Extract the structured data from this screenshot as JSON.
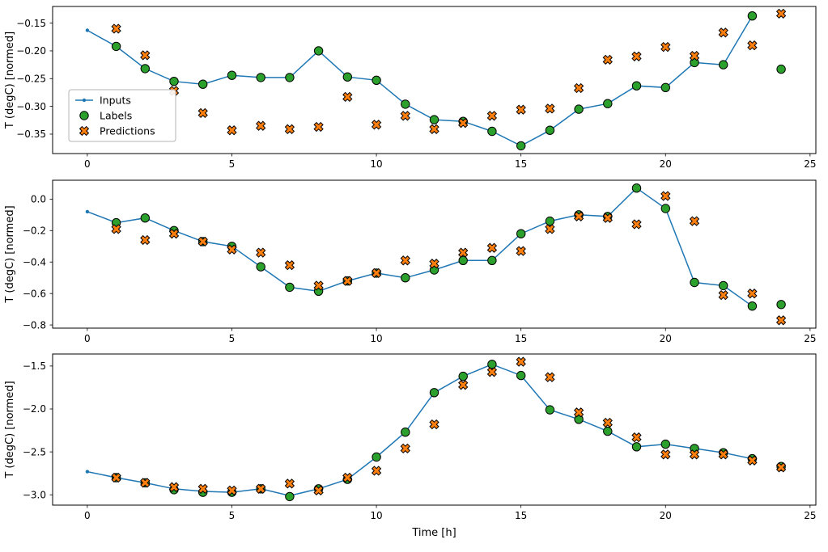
{
  "figure": {
    "background": "#ffffff",
    "xlabel": "Time [h]",
    "ylabel": "T (degC) [normed]"
  },
  "legend": {
    "entries": [
      "Inputs",
      "Labels",
      "Predictions"
    ]
  },
  "colors": {
    "inputs": "#1f77b4",
    "labels": "#2ca02c",
    "predictions": "#ff7f0e",
    "marker_edge": "#000000",
    "axes": "#000000",
    "legend_border": "#b4b4b4"
  },
  "chart_data": [
    {
      "type": "line",
      "title": "",
      "xlabel": "",
      "ylabel": "T (degC) [normed]",
      "xlim": [
        -1.2,
        25.2
      ],
      "ylim": [
        -0.385,
        -0.12
      ],
      "xticks": [
        0,
        5,
        10,
        15,
        20,
        25
      ],
      "xtick_labels": [
        "0",
        "5",
        "10",
        "15",
        "20",
        "25"
      ],
      "yticks": [
        -0.15,
        -0.2,
        -0.25,
        -0.3,
        -0.35
      ],
      "ytick_labels": [
        "−0.15",
        "−0.20",
        "−0.25",
        "−0.30",
        "−0.35"
      ],
      "grid": false,
      "legend": true,
      "series": [
        {
          "name": "Inputs",
          "marker": "line+dot",
          "color": "#1f77b4",
          "x": [
            0,
            1,
            2,
            3,
            4,
            5,
            6,
            7,
            8,
            9,
            10,
            11,
            12,
            13,
            14,
            15,
            16,
            17,
            18,
            19,
            20,
            21,
            22,
            23
          ],
          "y": [
            -0.163,
            -0.192,
            -0.232,
            -0.255,
            -0.26,
            -0.244,
            -0.248,
            -0.248,
            -0.2,
            -0.247,
            -0.253,
            -0.296,
            -0.324,
            -0.327,
            -0.345,
            -0.371,
            -0.343,
            -0.305,
            -0.295,
            -0.263,
            -0.266,
            -0.221,
            -0.225,
            -0.137
          ]
        },
        {
          "name": "Labels",
          "marker": "circle",
          "color": "#2ca02c",
          "edge": "#000000",
          "x": [
            1,
            2,
            3,
            4,
            5,
            6,
            7,
            8,
            9,
            10,
            11,
            12,
            13,
            14,
            15,
            16,
            17,
            18,
            19,
            20,
            21,
            22,
            23,
            24
          ],
          "y": [
            -0.192,
            -0.232,
            -0.255,
            -0.26,
            -0.244,
            -0.248,
            -0.248,
            -0.2,
            -0.247,
            -0.253,
            -0.296,
            -0.324,
            -0.327,
            -0.345,
            -0.371,
            -0.343,
            -0.305,
            -0.295,
            -0.263,
            -0.266,
            -0.221,
            -0.225,
            -0.137,
            -0.233
          ]
        },
        {
          "name": "Predictions",
          "marker": "X",
          "color": "#ff7f0e",
          "edge": "#000000",
          "x": [
            1,
            2,
            3,
            4,
            5,
            6,
            7,
            8,
            9,
            10,
            11,
            12,
            13,
            14,
            15,
            16,
            17,
            18,
            19,
            20,
            21,
            22,
            23,
            24
          ],
          "y": [
            -0.16,
            -0.208,
            -0.272,
            -0.312,
            -0.343,
            -0.335,
            -0.341,
            -0.337,
            -0.283,
            -0.333,
            -0.317,
            -0.341,
            -0.33,
            -0.317,
            -0.306,
            -0.304,
            -0.267,
            -0.216,
            -0.21,
            -0.193,
            -0.209,
            -0.167,
            -0.19,
            -0.133
          ]
        }
      ]
    },
    {
      "type": "line",
      "title": "",
      "xlabel": "",
      "ylabel": "T (degC) [normed]",
      "xlim": [
        -1.2,
        25.2
      ],
      "ylim": [
        -0.82,
        0.12
      ],
      "xticks": [
        0,
        5,
        10,
        15,
        20,
        25
      ],
      "xtick_labels": [
        "0",
        "5",
        "10",
        "15",
        "20",
        "25"
      ],
      "yticks": [
        0.0,
        -0.2,
        -0.4,
        -0.6,
        -0.8
      ],
      "ytick_labels": [
        "0.0",
        "−0.2",
        "−0.4",
        "−0.6",
        "−0.8"
      ],
      "grid": false,
      "legend": false,
      "series": [
        {
          "name": "Inputs",
          "marker": "line+dot",
          "color": "#1f77b4",
          "x": [
            0,
            1,
            2,
            3,
            4,
            5,
            6,
            7,
            8,
            9,
            10,
            11,
            12,
            13,
            14,
            15,
            16,
            17,
            18,
            19,
            20,
            21,
            22,
            23
          ],
          "y": [
            -0.08,
            -0.15,
            -0.12,
            -0.2,
            -0.27,
            -0.3,
            -0.43,
            -0.56,
            -0.585,
            -0.52,
            -0.47,
            -0.5,
            -0.45,
            -0.39,
            -0.39,
            -0.22,
            -0.14,
            -0.1,
            -0.11,
            0.07,
            -0.06,
            -0.53,
            -0.55,
            -0.68
          ]
        },
        {
          "name": "Labels",
          "marker": "circle",
          "color": "#2ca02c",
          "edge": "#000000",
          "x": [
            1,
            2,
            3,
            4,
            5,
            6,
            7,
            8,
            9,
            10,
            11,
            12,
            13,
            14,
            15,
            16,
            17,
            18,
            19,
            20,
            21,
            22,
            23,
            24
          ],
          "y": [
            -0.15,
            -0.12,
            -0.2,
            -0.27,
            -0.3,
            -0.43,
            -0.56,
            -0.585,
            -0.52,
            -0.47,
            -0.5,
            -0.45,
            -0.39,
            -0.39,
            -0.22,
            -0.14,
            -0.1,
            -0.11,
            0.07,
            -0.06,
            -0.53,
            -0.55,
            -0.68,
            -0.67
          ]
        },
        {
          "name": "Predictions",
          "marker": "X",
          "color": "#ff7f0e",
          "edge": "#000000",
          "x": [
            1,
            2,
            3,
            4,
            5,
            6,
            7,
            8,
            9,
            10,
            11,
            12,
            13,
            14,
            15,
            16,
            17,
            18,
            19,
            20,
            21,
            22,
            23,
            24
          ],
          "y": [
            -0.19,
            -0.26,
            -0.22,
            -0.27,
            -0.32,
            -0.34,
            -0.42,
            -0.55,
            -0.52,
            -0.47,
            -0.39,
            -0.41,
            -0.34,
            -0.31,
            -0.33,
            -0.19,
            -0.11,
            -0.12,
            -0.16,
            0.02,
            -0.14,
            -0.61,
            -0.6,
            -0.77
          ]
        }
      ]
    },
    {
      "type": "line",
      "title": "",
      "xlabel": "Time [h]",
      "ylabel": "T (degC) [normed]",
      "xlim": [
        -1.2,
        25.2
      ],
      "ylim": [
        -3.12,
        -1.36
      ],
      "xticks": [
        0,
        5,
        10,
        15,
        20,
        25
      ],
      "xtick_labels": [
        "0",
        "5",
        "10",
        "15",
        "20",
        "25"
      ],
      "yticks": [
        -1.5,
        -2.0,
        -2.5,
        -3.0
      ],
      "ytick_labels": [
        "−1.5",
        "−2.0",
        "−2.5",
        "−3.0"
      ],
      "grid": false,
      "legend": false,
      "series": [
        {
          "name": "Inputs",
          "marker": "line+dot",
          "color": "#1f77b4",
          "x": [
            0,
            1,
            2,
            3,
            4,
            5,
            6,
            7,
            8,
            9,
            10,
            11,
            12,
            13,
            14,
            15,
            16,
            17,
            18,
            19,
            20,
            21,
            22,
            23
          ],
          "y": [
            -2.73,
            -2.8,
            -2.86,
            -2.93,
            -2.96,
            -2.97,
            -2.93,
            -3.01,
            -2.93,
            -2.82,
            -2.56,
            -2.27,
            -1.81,
            -1.62,
            -1.48,
            -1.61,
            -2.01,
            -2.12,
            -2.26,
            -2.44,
            -2.41,
            -2.46,
            -2.51,
            -2.58
          ]
        },
        {
          "name": "Labels",
          "marker": "circle",
          "color": "#2ca02c",
          "edge": "#000000",
          "x": [
            1,
            2,
            3,
            4,
            5,
            6,
            7,
            8,
            9,
            10,
            11,
            12,
            13,
            14,
            15,
            16,
            17,
            18,
            19,
            20,
            21,
            22,
            23,
            24
          ],
          "y": [
            -2.8,
            -2.86,
            -2.94,
            -2.97,
            -2.97,
            -2.93,
            -3.02,
            -2.93,
            -2.82,
            -2.56,
            -2.27,
            -1.81,
            -1.62,
            -1.48,
            -1.61,
            -2.01,
            -2.12,
            -2.26,
            -2.44,
            -2.41,
            -2.46,
            -2.51,
            -2.58,
            -2.67
          ]
        },
        {
          "name": "Predictions",
          "marker": "X",
          "color": "#ff7f0e",
          "edge": "#000000",
          "x": [
            1,
            2,
            3,
            4,
            5,
            6,
            7,
            8,
            9,
            10,
            11,
            12,
            13,
            14,
            15,
            16,
            17,
            18,
            19,
            20,
            21,
            22,
            23,
            24
          ],
          "y": [
            -2.8,
            -2.86,
            -2.91,
            -2.93,
            -2.95,
            -2.93,
            -2.87,
            -2.95,
            -2.8,
            -2.72,
            -2.46,
            -2.18,
            -1.72,
            -1.57,
            -1.45,
            -1.63,
            -2.04,
            -2.16,
            -2.33,
            -2.53,
            -2.53,
            -2.53,
            -2.6,
            -2.68
          ]
        }
      ]
    }
  ]
}
